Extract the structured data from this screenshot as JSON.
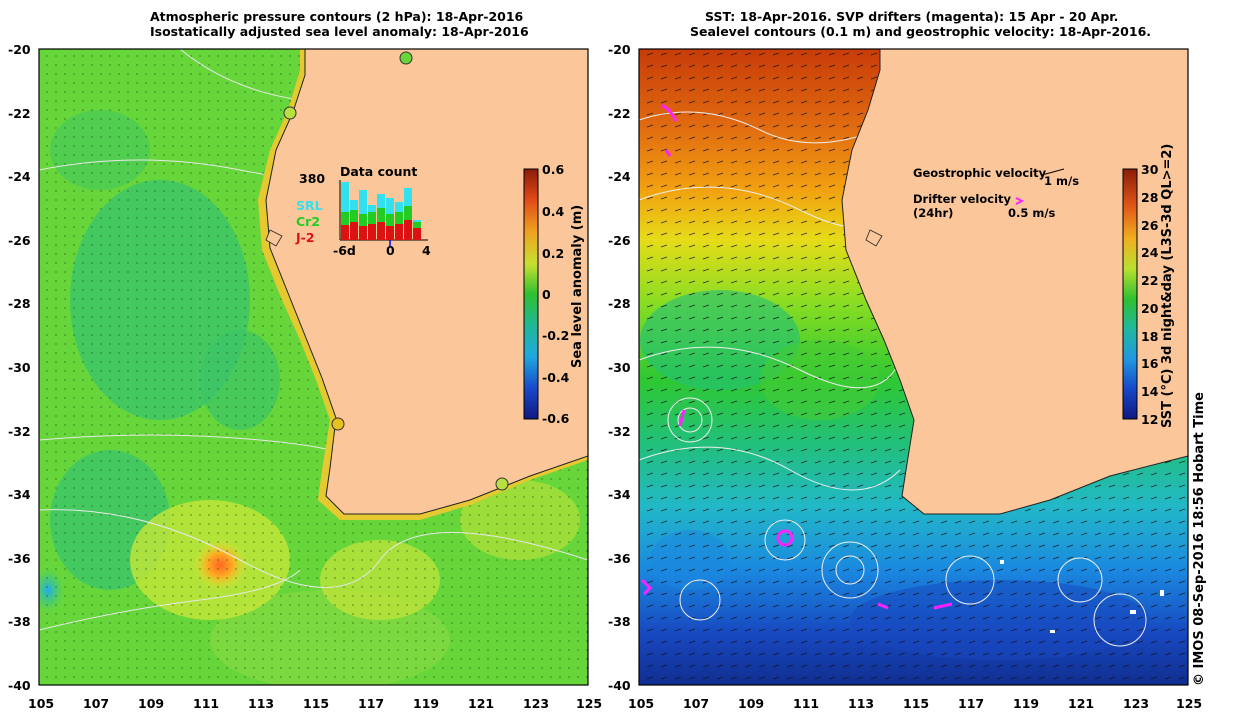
{
  "left_panel": {
    "title_line1": "Atmospheric pressure contours (2 hPa): 18-Apr-2016",
    "title_line2": "Isostatically adjusted sea level anomaly: 18-Apr-2016",
    "colorbar": {
      "label": "Sea level anomaly (m)",
      "ticks": [
        "0.6",
        "0.4",
        "0.2",
        "0",
        "-0.2",
        "-0.4",
        "-0.6"
      ]
    },
    "inset": {
      "title": "Data count",
      "max_count": "380",
      "legend": [
        {
          "label": "SRL",
          "color": "#33e0f0"
        },
        {
          "label": "Cr2",
          "color": "#22cc22"
        },
        {
          "label": "J-2",
          "color": "#dd1111"
        }
      ],
      "x_ticks": [
        "-6d",
        "0",
        "4"
      ]
    }
  },
  "right_panel": {
    "title_line1": "SST: 18-Apr-2016. SVP drifters (magenta): 15 Apr - 20 Apr.",
    "title_line2": "Sealevel contours (0.1 m) and geostrophic velocity: 18-Apr-2016.",
    "colorbar": {
      "label": "SST (°C) 3d night&day (L3S-3d QL>=2)",
      "ticks": [
        "30",
        "28",
        "26",
        "24",
        "22",
        "20",
        "18",
        "16",
        "14",
        "12"
      ]
    },
    "legend": {
      "geo_label": "Geostrophic velocity",
      "geo_scale": "1 m/s",
      "drifter_label": "Drifter velocity",
      "drifter_sub": "(24hr)",
      "drifter_scale": "0.5 m/s"
    }
  },
  "axes": {
    "lat_labels": [
      "-20",
      "-22",
      "-24",
      "-26",
      "-28",
      "-30",
      "-32",
      "-34",
      "-36",
      "-38",
      "-40"
    ],
    "lon_labels": [
      "105",
      "107",
      "109",
      "111",
      "113",
      "115",
      "117",
      "119",
      "121",
      "123",
      "125"
    ]
  },
  "credit": "© IMOS 08-Sep-2016 18:56 Hobart Time"
}
